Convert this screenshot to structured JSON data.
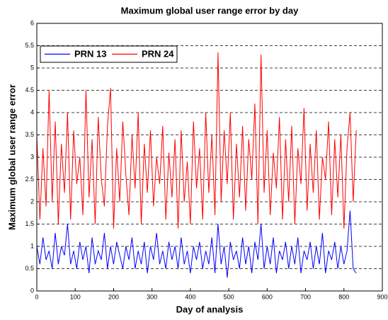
{
  "chart_data": {
    "type": "line",
    "title": "Maximum global user range error by day",
    "xlabel": "Day of analysis",
    "ylabel": "Maximum global user range error",
    "x": [
      0,
      8,
      16,
      24,
      32,
      40,
      48,
      56,
      64,
      72,
      80,
      88,
      96,
      104,
      112,
      120,
      128,
      136,
      144,
      152,
      160,
      168,
      176,
      184,
      192,
      200,
      208,
      216,
      224,
      232,
      240,
      248,
      256,
      264,
      272,
      280,
      288,
      296,
      304,
      312,
      320,
      328,
      336,
      344,
      352,
      360,
      368,
      376,
      384,
      392,
      400,
      408,
      416,
      424,
      432,
      440,
      448,
      456,
      464,
      472,
      480,
      488,
      496,
      504,
      512,
      520,
      528,
      536,
      544,
      552,
      560,
      568,
      576,
      584,
      592,
      600,
      608,
      616,
      624,
      632,
      640,
      648,
      656,
      664,
      672,
      680,
      688,
      696,
      704,
      712,
      720,
      728,
      736,
      744,
      752,
      760,
      768,
      776,
      784,
      792,
      800,
      808,
      816,
      824,
      832
    ],
    "series": [
      {
        "name": "PRN 13",
        "color": "#0000ff",
        "values": [
          1.0,
          0.6,
          1.2,
          0.7,
          0.9,
          0.5,
          1.3,
          0.6,
          1.0,
          0.8,
          1.5,
          0.6,
          0.9,
          0.5,
          1.1,
          0.7,
          1.0,
          0.4,
          1.2,
          0.6,
          0.9,
          0.7,
          1.3,
          0.5,
          1.0,
          0.6,
          1.1,
          0.8,
          0.5,
          1.0,
          0.7,
          1.2,
          0.5,
          0.9,
          0.6,
          1.1,
          0.4,
          1.0,
          0.7,
          1.3,
          0.6,
          0.9,
          0.5,
          1.1,
          0.7,
          1.0,
          0.5,
          1.2,
          0.6,
          0.9,
          0.4,
          1.0,
          0.7,
          1.1,
          0.5,
          0.9,
          0.6,
          1.2,
          0.4,
          1.5,
          0.6,
          1.0,
          0.3,
          1.1,
          0.7,
          0.9,
          0.5,
          1.2,
          0.6,
          1.0,
          0.4,
          1.1,
          0.7,
          1.5,
          0.5,
          1.0,
          0.6,
          1.2,
          0.4,
          0.9,
          0.7,
          1.1,
          0.5,
          1.0,
          0.6,
          1.2,
          0.4,
          0.9,
          0.7,
          1.1,
          0.5,
          1.0,
          0.6,
          1.3,
          0.4,
          0.9,
          0.7,
          1.1,
          0.5,
          1.0,
          0.6,
          0.9,
          1.8,
          0.5,
          0.4
        ]
      },
      {
        "name": "PRN 24",
        "color": "#ff0000",
        "values": [
          3.5,
          1.6,
          3.2,
          1.9,
          4.5,
          2.0,
          3.8,
          1.5,
          3.3,
          2.2,
          4.0,
          1.6,
          3.6,
          2.4,
          3.0,
          1.7,
          4.5,
          2.1,
          3.4,
          1.5,
          3.9,
          2.5,
          1.9,
          3.7,
          4.55,
          1.4,
          3.2,
          2.0,
          3.8,
          2.6,
          1.7,
          3.5,
          2.3,
          4.0,
          1.5,
          3.3,
          2.2,
          3.6,
          1.9,
          3.0,
          2.4,
          3.7,
          1.6,
          3.1,
          2.1,
          3.4,
          1.4,
          3.6,
          2.0,
          2.9,
          1.5,
          3.8,
          2.3,
          3.2,
          1.6,
          4.0,
          2.2,
          3.5,
          1.7,
          5.35,
          2.0,
          3.6,
          2.4,
          4.0,
          1.6,
          3.3,
          2.1,
          3.7,
          1.8,
          3.4,
          2.5,
          4.2,
          1.5,
          5.3,
          2.2,
          3.6,
          1.7,
          3.1,
          2.3,
          3.9,
          1.6,
          3.4,
          2.0,
          3.7,
          1.5,
          3.2,
          2.4,
          4.1,
          1.8,
          3.3,
          2.2,
          3.6,
          1.6,
          3.0,
          2.5,
          3.8,
          1.7,
          3.4,
          2.1,
          3.5,
          1.4,
          3.2,
          4.0,
          2.0,
          3.6
        ]
      }
    ],
    "xlim": [
      0,
      900
    ],
    "xticks": [
      0,
      100,
      200,
      300,
      400,
      500,
      600,
      700,
      800,
      900
    ],
    "ylim": [
      0,
      6
    ],
    "yticks": [
      0,
      0.5,
      1,
      1.5,
      2,
      2.5,
      3,
      3.5,
      4,
      4.5,
      5,
      5.5,
      6
    ],
    "grid": "y",
    "legend": "upper left"
  }
}
